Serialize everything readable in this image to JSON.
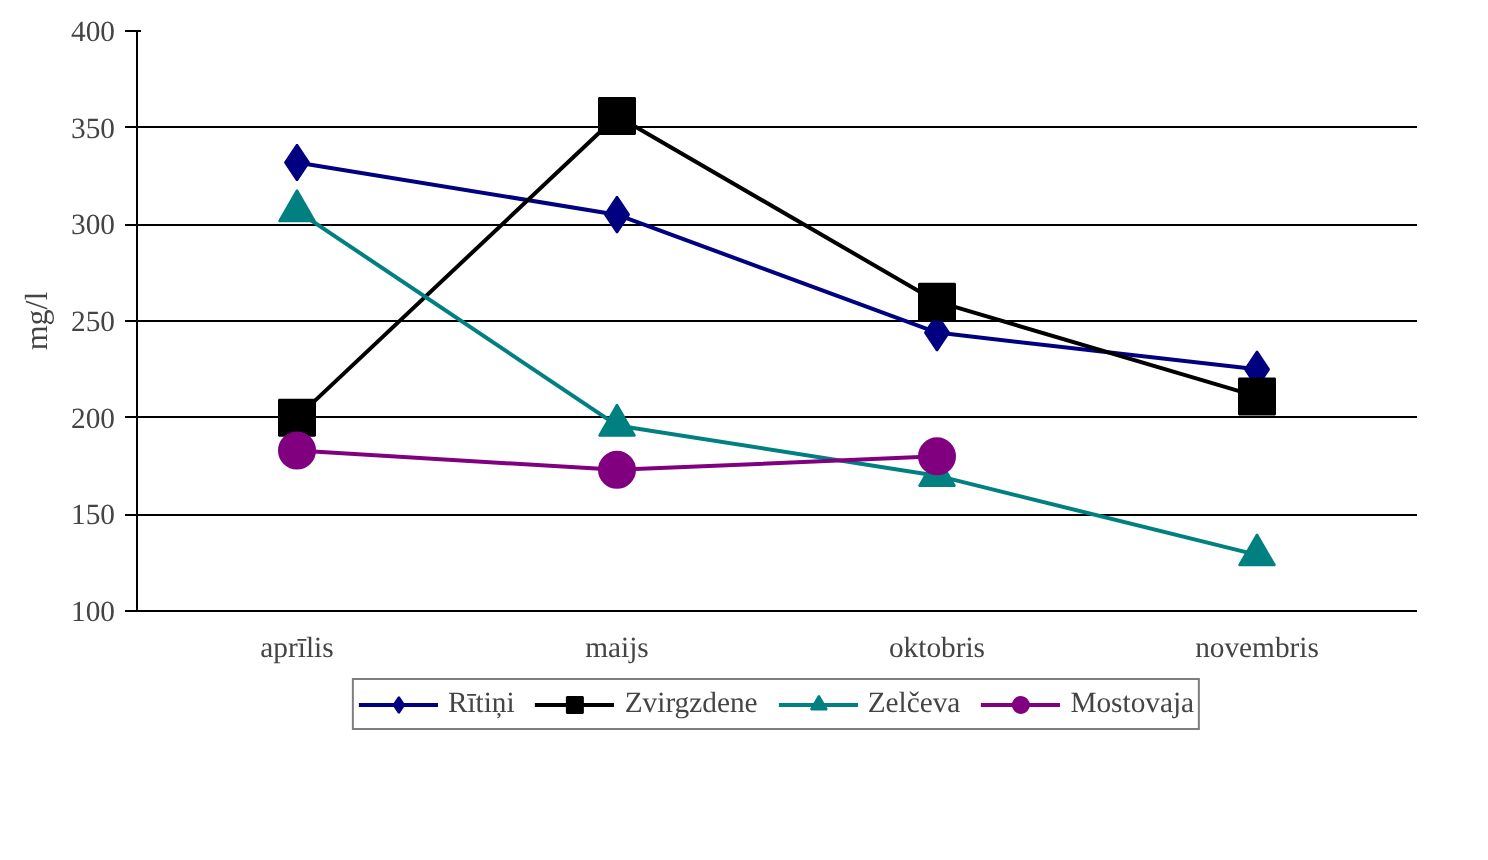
{
  "chart_data": {
    "type": "line",
    "ylabel": "mg/l",
    "categories": [
      "aprīlis",
      "maijs",
      "oktobris",
      "novembris"
    ],
    "series": [
      {
        "name": "Rītiņi",
        "color": "#000080",
        "marker": "diamond",
        "values": [
          332,
          305,
          244,
          225
        ]
      },
      {
        "name": "Zvirgzdene",
        "color": "#000000",
        "marker": "square",
        "values": [
          200,
          356,
          260,
          211
        ]
      },
      {
        "name": "Zelčeva",
        "color": "#008080",
        "marker": "triangle",
        "values": [
          307,
          196,
          170,
          129
        ]
      },
      {
        "name": "Mostovaja",
        "color": "#800080",
        "marker": "circle",
        "values": [
          183,
          173,
          180,
          null
        ]
      }
    ],
    "ylim": [
      100,
      400
    ],
    "yticks": [
      100,
      150,
      200,
      250,
      300,
      350,
      400
    ],
    "grid": "y",
    "legend": "bottom",
    "line_style": "solid"
  }
}
